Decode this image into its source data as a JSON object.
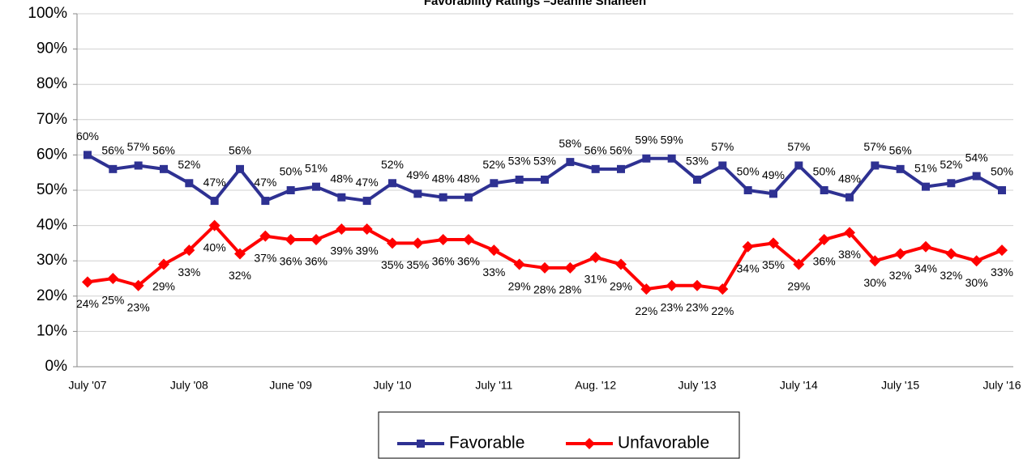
{
  "chart_data": {
    "type": "line",
    "title": "Favorability Ratings –Jeanne Shaheen",
    "categories": [
      "July '07",
      null,
      null,
      null,
      "July '08",
      null,
      null,
      null,
      "June '09",
      null,
      null,
      null,
      "July '10",
      null,
      null,
      null,
      "July '11",
      null,
      null,
      null,
      "Aug. '12",
      null,
      null,
      null,
      "July '13",
      null,
      null,
      null,
      "July '14",
      null,
      null,
      null,
      "July '15",
      null,
      null,
      null,
      "July '16"
    ],
    "series": [
      {
        "name": "Favorable",
        "color": "#2e3192",
        "marker": "square",
        "values": [
          60,
          56,
          57,
          56,
          52,
          47,
          56,
          47,
          50,
          51,
          48,
          47,
          52,
          49,
          48,
          48,
          52,
          53,
          53,
          58,
          56,
          56,
          59,
          59,
          53,
          57,
          50,
          49,
          57,
          50,
          48,
          57,
          56,
          51,
          52,
          54,
          50
        ],
        "value_labels": [
          "60%",
          "56%",
          "57%",
          "56%",
          "52%",
          "47%",
          "56%",
          "47%",
          "50%",
          "51%",
          "48%",
          "47%",
          "52%",
          "49%",
          "48%",
          "48%",
          "52%",
          "53%",
          "53%",
          "58%",
          "56%",
          "56%",
          "59%",
          "59%",
          "53%",
          "57%",
          "50%",
          "49%",
          "57%",
          "50%",
          "48%",
          "57%",
          "56%",
          "51%",
          "52%",
          "54%",
          "50%"
        ]
      },
      {
        "name": "Unfavorable",
        "color": "#ff0000",
        "marker": "diamond",
        "values": [
          24,
          25,
          23,
          29,
          33,
          40,
          32,
          37,
          36,
          36,
          39,
          39,
          35,
          35,
          36,
          36,
          33,
          29,
          28,
          28,
          31,
          29,
          22,
          23,
          23,
          22,
          34,
          35,
          29,
          36,
          38,
          30,
          32,
          34,
          32,
          30,
          33
        ],
        "value_labels": [
          "24%",
          "25%",
          "23%",
          "29%",
          "33%",
          "40%",
          "32%",
          "37%",
          "36%",
          "36%",
          "39%",
          "39%",
          "35%",
          "35%",
          "36%",
          "36%",
          "33%",
          "29%",
          "28%",
          "28%",
          "31%",
          "29%",
          "22%",
          "23%",
          "23%",
          "22%",
          "34%",
          "35%",
          "29%",
          "36%",
          "38%",
          "30%",
          "32%",
          "34%",
          "32%",
          "30%",
          "33%"
        ]
      }
    ],
    "ylim": [
      0,
      100
    ],
    "yticks": [
      {
        "value": 0,
        "label": "0%"
      },
      {
        "value": 10,
        "label": "10%"
      },
      {
        "value": 20,
        "label": "20%"
      },
      {
        "value": 30,
        "label": "30%"
      },
      {
        "value": 40,
        "label": "40%"
      },
      {
        "value": 50,
        "label": "50%"
      },
      {
        "value": 60,
        "label": "60%"
      },
      {
        "value": 70,
        "label": "70%"
      },
      {
        "value": 80,
        "label": "80%"
      },
      {
        "value": 90,
        "label": "90%"
      },
      {
        "value": 100,
        "label": "100%"
      }
    ],
    "grid": true,
    "legend": "bottom"
  }
}
